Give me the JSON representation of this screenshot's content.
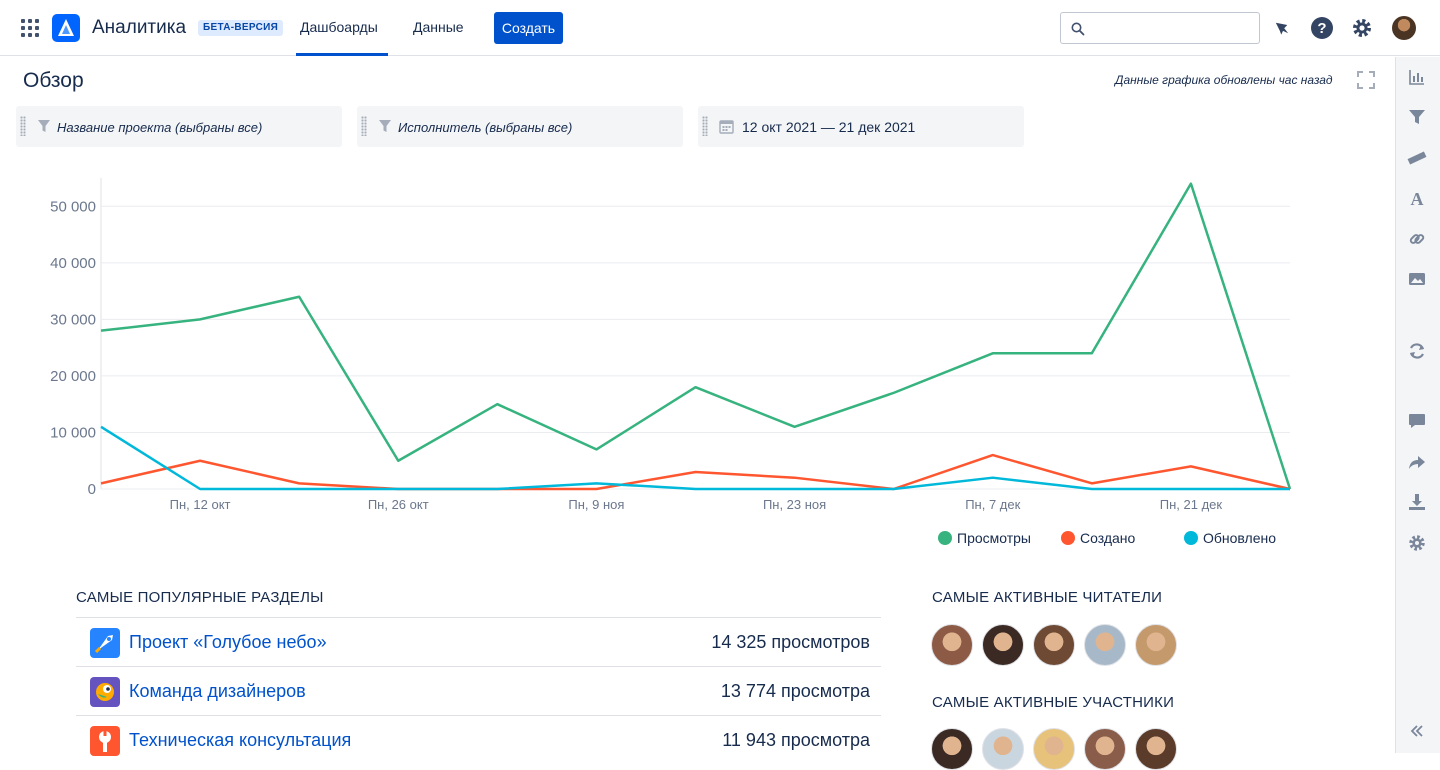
{
  "app": {
    "title": "Аналитика",
    "badge": "БЕТА-ВЕРСИЯ",
    "brand_color": "#0052cc"
  },
  "nav": {
    "tabs": [
      {
        "label": "Дашбоарды",
        "active": true
      },
      {
        "label": "Данные",
        "active": false
      }
    ],
    "create_label": "Создать",
    "search_placeholder": "",
    "icons": [
      "notifications-icon",
      "help-icon",
      "settings-icon",
      "user-avatar"
    ]
  },
  "page": {
    "title": "Обзор",
    "updated_text": "Данные графика обновлены час назад"
  },
  "filters": [
    {
      "icon": "filter-icon",
      "label": "Название проекта (выбраны все)"
    },
    {
      "icon": "filter-icon",
      "label": "Исполнитель (выбраны все)"
    },
    {
      "icon": "calendar-icon",
      "label": "12 окт 2021 — 21 дек 2021"
    }
  ],
  "sidebar": {
    "icons": [
      "bar-chart-icon",
      "filter-icon",
      "ruler-icon",
      "text-icon",
      "link-icon",
      "image-icon",
      "refresh-icon",
      "comment-icon",
      "share-icon",
      "download-icon",
      "settings-icon",
      "collapse-icon"
    ]
  },
  "chart_data": {
    "type": "line",
    "x_tick_labels": [
      "Пн, 12 окт",
      "Пн, 26 окт",
      "Пн, 9 ноя",
      "Пн, 23 ноя",
      "Пн, 7 дек",
      "Пн, 21 дек"
    ],
    "y_tick_labels": [
      "0",
      "10 000",
      "20 000",
      "30 000",
      "40 000",
      "50 000"
    ],
    "ylim": [
      0,
      55000
    ],
    "grid": true,
    "legend_position": "bottom-right",
    "series": [
      {
        "name": "Просмотры",
        "color": "#36b37e",
        "values": [
          28000,
          30000,
          34000,
          5000,
          15000,
          7000,
          18000,
          11000,
          17000,
          24000,
          24000,
          54000,
          0
        ]
      },
      {
        "name": "Создано",
        "color": "#ff5630",
        "values": [
          1000,
          5000,
          1000,
          0,
          0,
          0,
          3000,
          2000,
          0,
          6000,
          1000,
          4000,
          0
        ]
      },
      {
        "name": "Обновлено",
        "color": "#00b8d9",
        "values": [
          11000,
          0,
          0,
          0,
          0,
          1000,
          0,
          0,
          0,
          2000,
          0,
          0,
          0
        ]
      }
    ]
  },
  "popular": {
    "title": "САМЫЕ ПОПУЛЯРНЫЕ РАЗДЕЛЫ",
    "rows": [
      {
        "name": "Проект «Голубое небо»",
        "views": "14 325 просмотров",
        "icon": "rocket-space-icon",
        "color": "#2684ff"
      },
      {
        "name": "Команда дизайнеров",
        "views": "13 774 просмотра",
        "icon": "parrot-space-icon",
        "color": "#6554c0"
      },
      {
        "name": "Техническая консультация",
        "views": "11 943 просмотра",
        "icon": "wrench-space-icon",
        "color": "#ff5630"
      }
    ]
  },
  "readers": {
    "title": "САМЫЕ АКТИВНЫЕ ЧИТАТЕЛИ",
    "avatars": [
      "#8d5b45",
      "#3b2a23",
      "#6e4a35",
      "#a7b9c9",
      "#c49a6c"
    ]
  },
  "contributors": {
    "title": "САМЫЕ АКТИВНЫЕ УЧАСТНИКИ",
    "avatars": [
      "#3b2a23",
      "#c9d6e0",
      "#e6c27a",
      "#8a5c4a",
      "#5b3b2a"
    ]
  }
}
